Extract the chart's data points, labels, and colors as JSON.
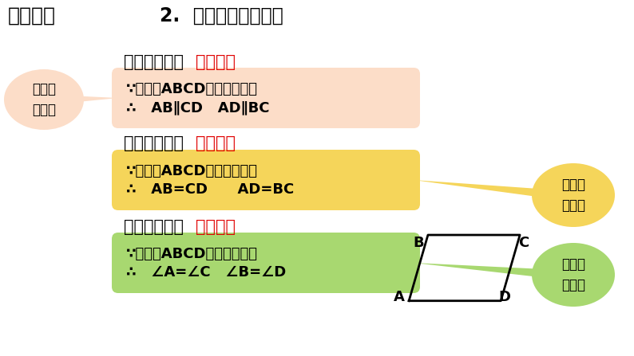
{
  "bg_color": "#ffffff",
  "title_left": "学习新知",
  "title_right": "2.  平行四边形的性质",
  "section1_black": "平行四边形的",
  "section1_red": "对边平行",
  "box1_line1": "∵四边形ABCD是平行四边形",
  "box1_line2": "∴   AB∥CD   AD∥BC",
  "box1_color": "#fcddc8",
  "section2_black": "平行四边形的",
  "section2_red": "对边相等",
  "box2_line1": "∵四边形ABCD是平行四边形",
  "box2_line2": "∴   AB=CD      AD=BC",
  "box2_color": "#f5d55a",
  "section3_black": "平行四边形的",
  "section3_red": "对角相等",
  "box3_line1": "∵四边形ABCD是平行四边形",
  "box3_line2": "∴   ∠A=∠C   ∠B=∠D",
  "box3_color": "#a8d870",
  "bubble1_text": "证两直\n线平行",
  "bubble1_color": "#fcddc8",
  "bubble2_text": "证两线\n段相等",
  "bubble2_color": "#f5d55a",
  "bubble3_text": "证两个\n角相等",
  "bubble3_color": "#a8d870",
  "para_A": [
    0.645,
    0.845
  ],
  "para_D": [
    0.79,
    0.845
  ],
  "para_C": [
    0.82,
    0.66
  ],
  "para_B": [
    0.675,
    0.66
  ],
  "font_cjk": "Noto Sans CJK SC",
  "font_cjk_alt": "WenQuanYi Micro Hei"
}
